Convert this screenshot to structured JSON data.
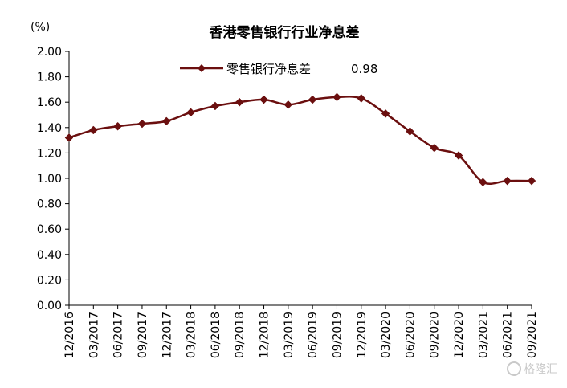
{
  "chart_data": {
    "type": "line",
    "title": "香港零售银行行业净息差",
    "unit_label": "(%)",
    "xlabel": "",
    "ylabel": "",
    "ylim": [
      0.0,
      2.0
    ],
    "y_ticks": [
      "0.00",
      "0.20",
      "0.40",
      "0.60",
      "0.80",
      "1.00",
      "1.20",
      "1.40",
      "1.60",
      "1.80",
      "2.00"
    ],
    "categories": [
      "12/2016",
      "03/2017",
      "06/2017",
      "09/2017",
      "12/2017",
      "03/2018",
      "06/2018",
      "09/2018",
      "12/2018",
      "03/2019",
      "06/2019",
      "09/2019",
      "12/2019",
      "03/2020",
      "06/2020",
      "09/2020",
      "12/2020",
      "03/2021",
      "06/2021",
      "09/2021"
    ],
    "series": [
      {
        "name": "零售银行净息差",
        "values": [
          1.32,
          1.38,
          1.41,
          1.43,
          1.45,
          1.52,
          1.57,
          1.6,
          1.62,
          1.58,
          1.62,
          1.64,
          1.63,
          1.51,
          1.37,
          1.24,
          1.18,
          0.97,
          0.98,
          0.98
        ],
        "latest_value_label": "0.98",
        "color": "#6b0f0f",
        "marker": "diamond"
      }
    ],
    "grid": false,
    "legend_position": "top-center"
  },
  "watermark": {
    "text": "格隆汇",
    "color": "#c9c9c9"
  }
}
